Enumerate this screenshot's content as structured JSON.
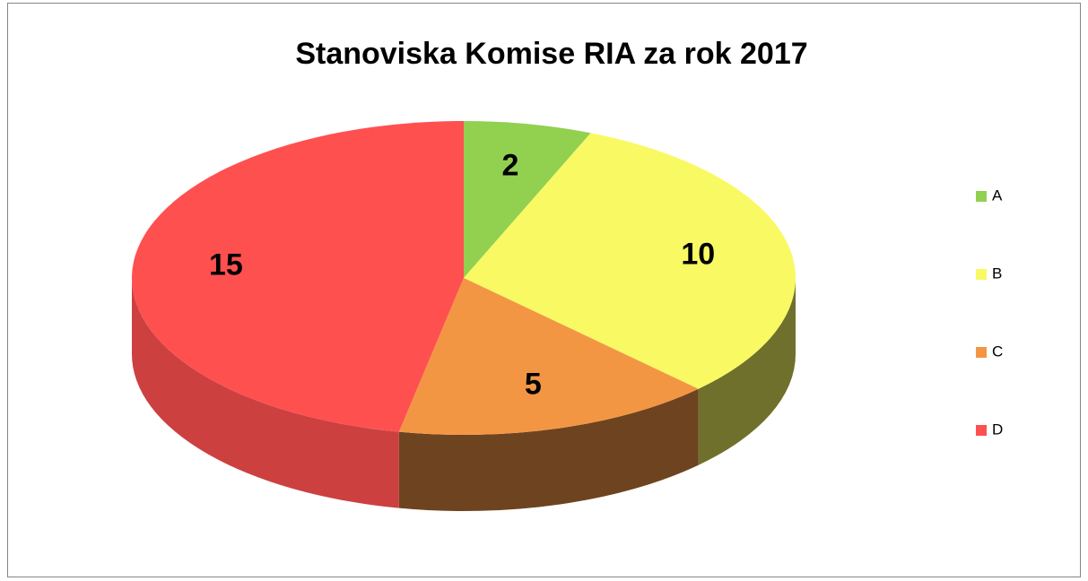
{
  "chart_data": {
    "type": "pie",
    "title": "Stanoviska Komise RIA za rok 2017",
    "categories": [
      "A",
      "B",
      "C",
      "D"
    ],
    "values": [
      2,
      10,
      5,
      15
    ],
    "colors": [
      "#92d050",
      "#f9f963",
      "#f39644",
      "#ff5050"
    ],
    "legend": "right"
  }
}
